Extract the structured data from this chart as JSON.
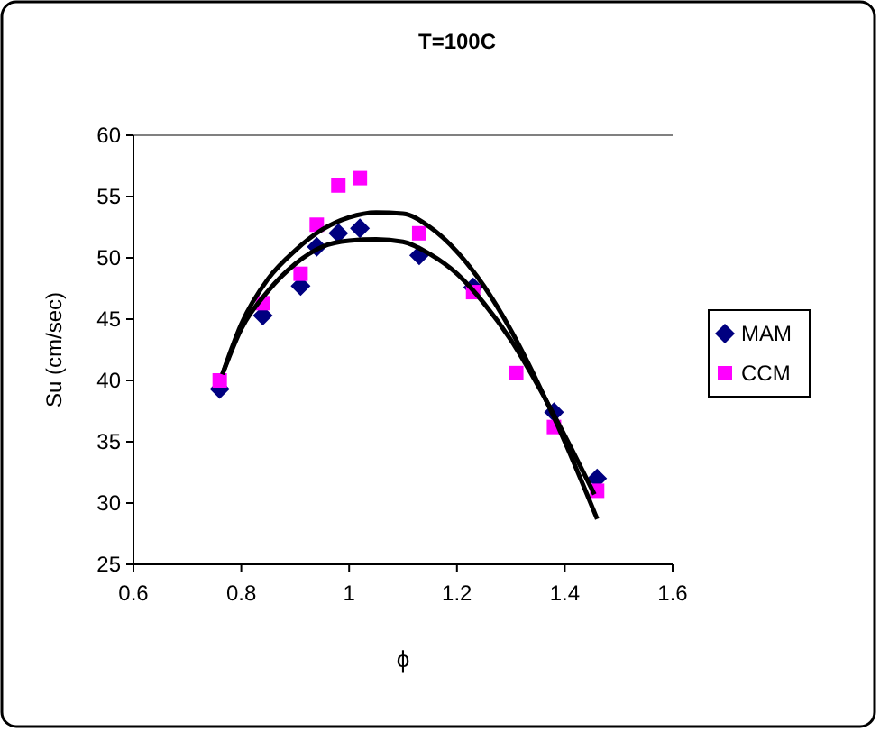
{
  "chart_data": {
    "type": "scatter",
    "title": "T=100C",
    "xlabel": "ϕ",
    "ylabel": "Su (cm/sec)",
    "xlim": [
      0.6,
      1.6
    ],
    "xticks": [
      0.6,
      0.8,
      1,
      1.2,
      1.4,
      1.6
    ],
    "ylim": [
      25,
      60
    ],
    "yticks": [
      25,
      30,
      35,
      40,
      45,
      50,
      55,
      60
    ],
    "legend": "right",
    "grid": false,
    "series": [
      {
        "name": "MAM",
        "color": "#000080",
        "marker": "diamond",
        "x": [
          0.76,
          0.84,
          0.91,
          0.94,
          0.98,
          1.02,
          1.13,
          1.23,
          1.31,
          1.38,
          1.46
        ],
        "values": [
          39.3,
          45.3,
          47.7,
          50.9,
          52,
          52.4,
          50.2,
          47.6,
          null,
          37.4,
          32
        ]
      },
      {
        "name": "CCM",
        "color": "#ff00ff",
        "marker": "square",
        "x": [
          0.76,
          0.84,
          0.91,
          0.94,
          0.98,
          1.02,
          1.13,
          1.23,
          1.31,
          1.38,
          1.46
        ],
        "values": [
          40,
          46.3,
          48.7,
          52.7,
          55.9,
          56.5,
          52,
          47.2,
          40.6,
          36.2,
          31
        ]
      },
      {
        "type": "line",
        "color": "#000000",
        "marker": "none",
        "x": [
          0.765,
          0.8,
          0.85,
          0.9,
          0.95,
          1,
          1.05,
          1.1,
          1.15,
          1.2,
          1.25,
          1.3,
          1.35,
          1.4,
          1.455
        ],
        "values": [
          40.5,
          44.2,
          47.3,
          49.5,
          50.9,
          51.4,
          51.5,
          51.3,
          50.3,
          48.7,
          46.3,
          43.3,
          39.6,
          35.5,
          30.7
        ]
      },
      {
        "type": "line",
        "color": "#000000",
        "marker": "none",
        "x": [
          0.765,
          0.8,
          0.85,
          0.9,
          0.95,
          1,
          1.05,
          1.1,
          1.15,
          1.2,
          1.25,
          1.3,
          1.35,
          1.4,
          1.46
        ],
        "values": [
          40.5,
          44.6,
          48.3,
          50.6,
          52.3,
          53.3,
          53.7,
          53.6,
          52.5,
          50.5,
          47.7,
          44.1,
          39.8,
          35,
          28.7
        ]
      }
    ]
  }
}
